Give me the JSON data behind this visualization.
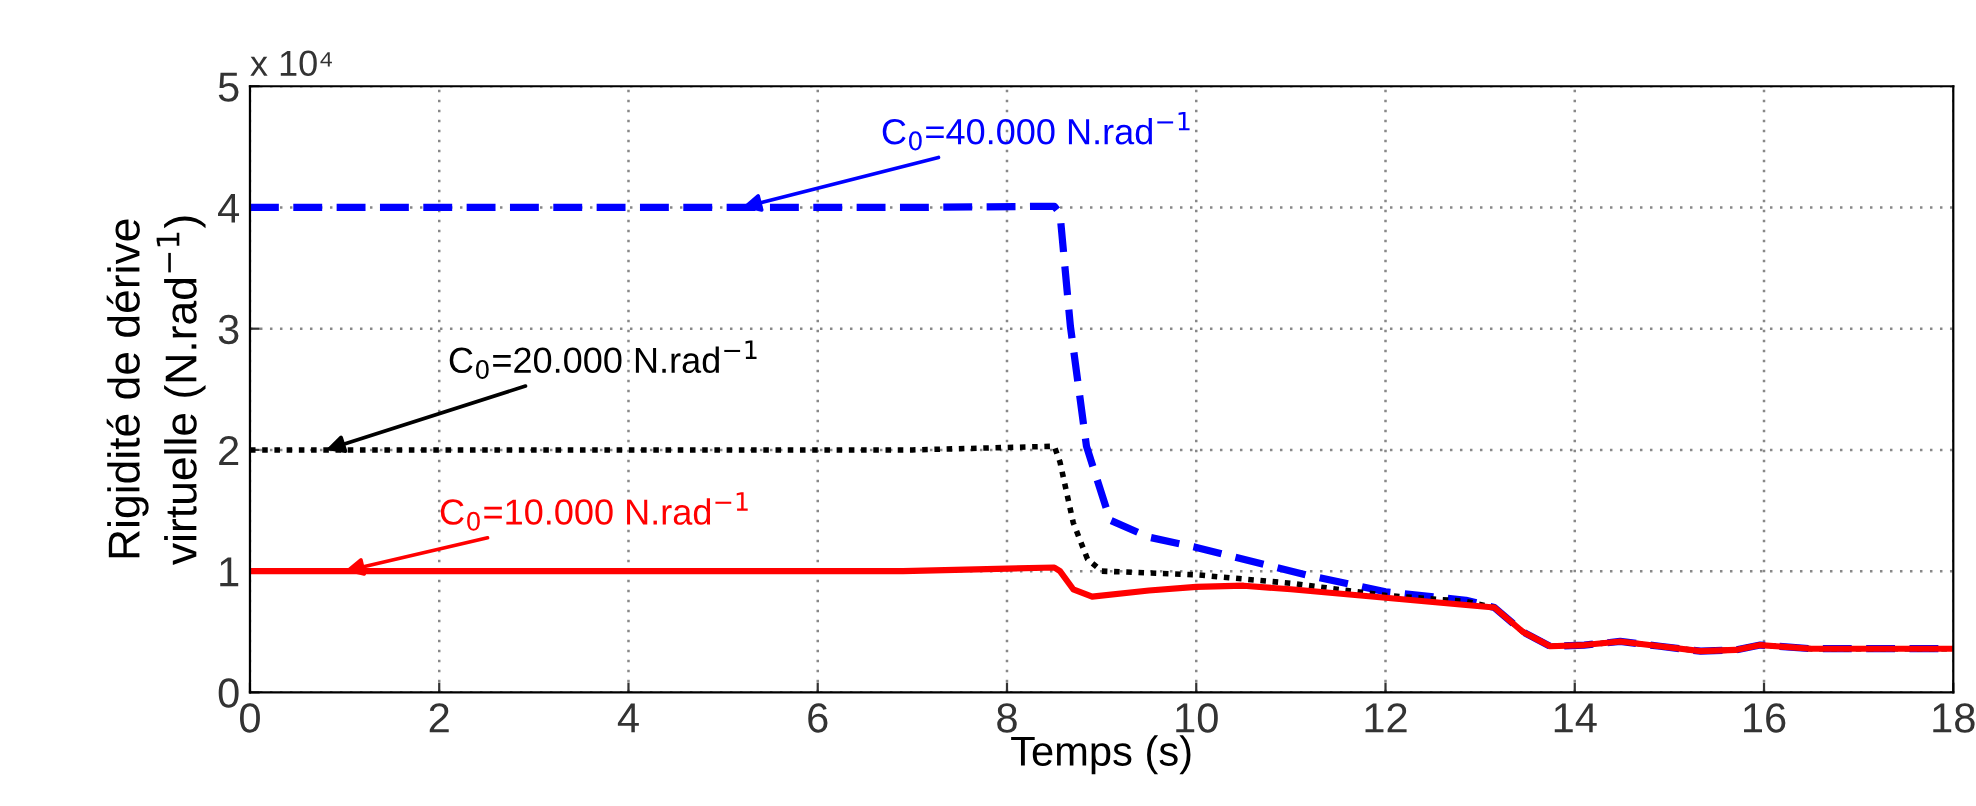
{
  "chart_data": {
    "type": "line",
    "xlabel": "Temps (s)",
    "ylabel": "Rigidité de dérive\nvirtuelle (N.rad$^{−1}$)",
    "xlim": [
      0,
      18
    ],
    "xticks": [
      0,
      2,
      4,
      6,
      8,
      10,
      12,
      14,
      16,
      18
    ],
    "ylim": [
      0,
      5
    ],
    "yticks": [
      0,
      1,
      2,
      3,
      4,
      5
    ],
    "grid": true,
    "legend": false,
    "series": [
      {
        "color": "#0000ff",
        "line_style": "dashed",
        "x": [
          0,
          7,
          8.5,
          8.56,
          8.67,
          8.84,
          9.09,
          9.5,
          9.98,
          11.16,
          12.0,
          12.85,
          13.15,
          13.45,
          13.74,
          14.1,
          14.48,
          14.9,
          15.33,
          15.7,
          15.96,
          16.5,
          18
        ],
        "values": [
          4.0,
          4.0,
          4.01,
          3.95,
          3.02,
          2.03,
          1.42,
          1.28,
          1.2,
          0.97,
          0.83,
          0.76,
          0.7,
          0.5,
          0.38,
          0.39,
          0.42,
          0.38,
          0.34,
          0.35,
          0.39,
          0.36,
          0.36
        ]
      },
      {
        "color": "#000000",
        "line_style": "dotted",
        "x": [
          0,
          7,
          8.5,
          8.56,
          8.7,
          8.85,
          9.0,
          10,
          11,
          12,
          12.85,
          13.15,
          13.45,
          13.74,
          14.1,
          14.48,
          14.9,
          15.33,
          15.7,
          15.96,
          16.5,
          18
        ],
        "values": [
          2.0,
          2.0,
          2.03,
          1.9,
          1.4,
          1.1,
          1.0,
          0.97,
          0.9,
          0.8,
          0.75,
          0.7,
          0.5,
          0.38,
          0.39,
          0.42,
          0.38,
          0.34,
          0.35,
          0.39,
          0.36,
          0.36
        ]
      },
      {
        "color": "#ff0000",
        "line_style": "solid",
        "x": [
          0,
          6.9,
          8.5,
          8.56,
          8.7,
          8.9,
          9.5,
          10,
          10.5,
          11,
          12,
          12.85,
          13.15,
          13.45,
          13.74,
          14.1,
          14.48,
          14.9,
          15.33,
          15.7,
          15.96,
          16.5,
          18
        ],
        "values": [
          1.0,
          1.0,
          1.03,
          1.0,
          0.85,
          0.79,
          0.84,
          0.87,
          0.88,
          0.85,
          0.78,
          0.72,
          0.7,
          0.5,
          0.38,
          0.39,
          0.42,
          0.38,
          0.34,
          0.35,
          0.39,
          0.36,
          0.36
        ]
      }
    ],
    "annotations": [
      {
        "text": "C$_{0}$=40.000 N.rad$^{−1}$",
        "x": 5.2,
        "y": 4.0
      },
      {
        "text": "C$_{0}$=20.000 N.rad$^{−1}$",
        "x": 0.8,
        "y": 2.0
      },
      {
        "text": "C$_{0}$=10.000 N.rad$^{−1}$",
        "x": 1.0,
        "y": 1.0
      },
      "x 10⁴"
    ]
  }
}
